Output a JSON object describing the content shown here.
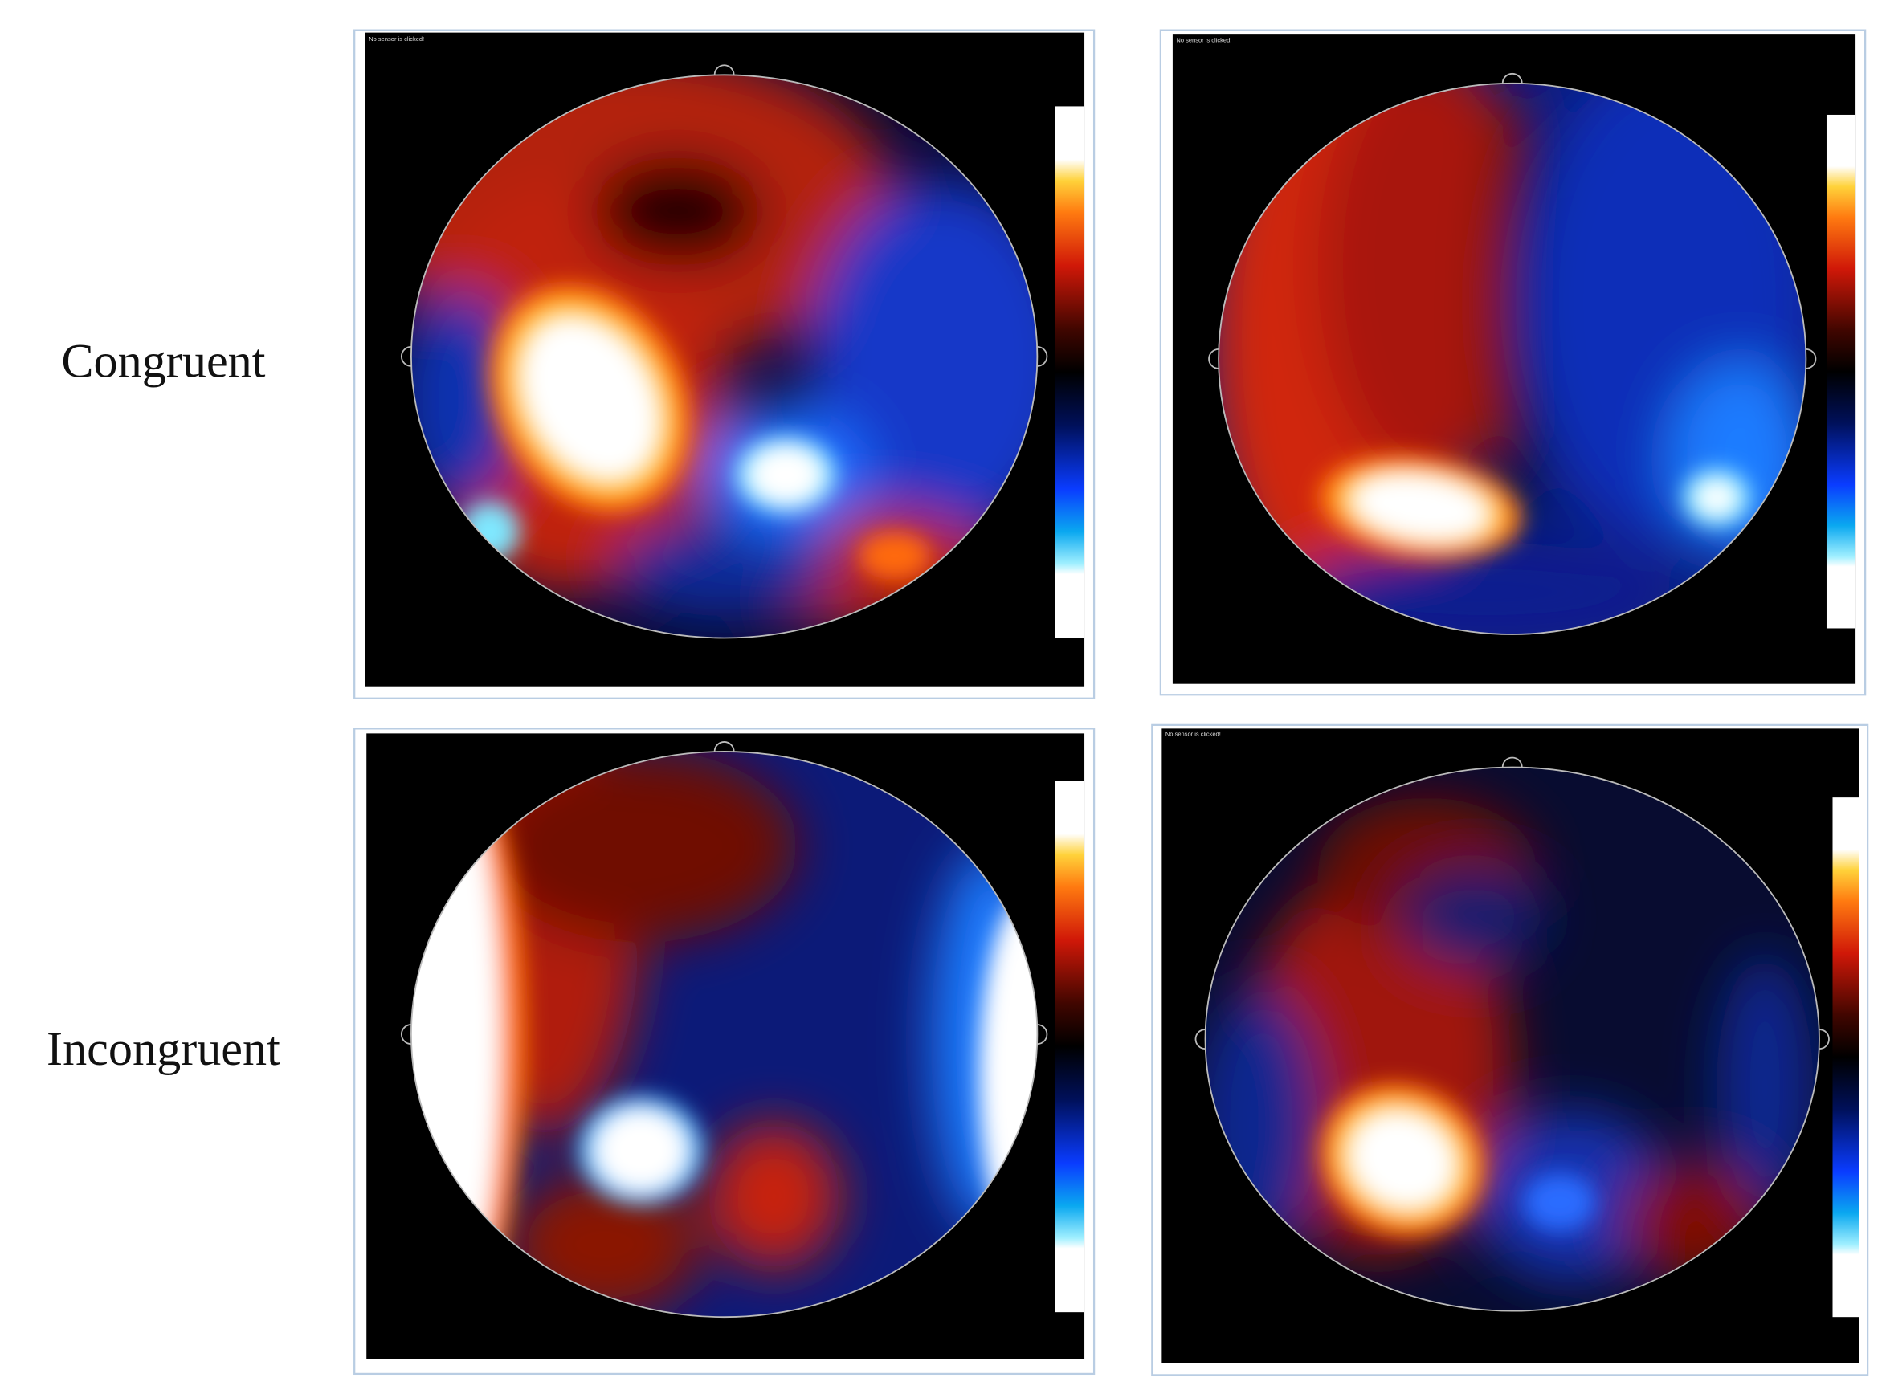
{
  "row_labels": [
    "Congruent",
    "Incongruent"
  ],
  "panel_captions": {
    "top_left": "No sensor is clicked!",
    "top_right": "No sensor is clicked!",
    "bottom_right": "No sensor is clicked!"
  }
}
